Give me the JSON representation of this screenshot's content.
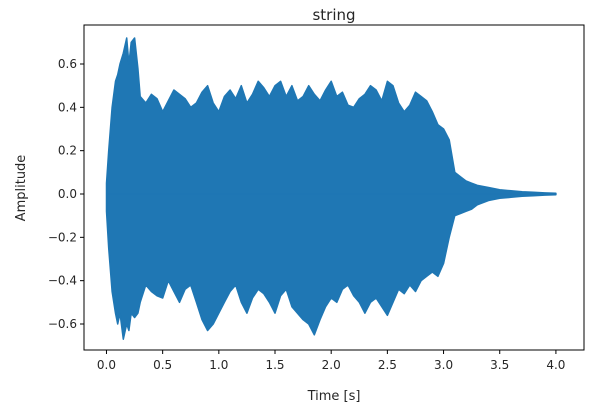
{
  "chart_data": {
    "type": "area",
    "title": "string",
    "xlabel": "Time [s]",
    "ylabel": "Amplitude",
    "xlim": [
      -0.2,
      4.25
    ],
    "ylim": [
      -0.72,
      0.78
    ],
    "xticks": [
      0.0,
      0.5,
      1.0,
      1.5,
      2.0,
      2.5,
      3.0,
      3.5,
      4.0
    ],
    "xtick_labels": [
      "0.0",
      "0.5",
      "1.0",
      "1.5",
      "2.0",
      "2.5",
      "3.0",
      "3.5",
      "4.0"
    ],
    "yticks": [
      -0.6,
      -0.4,
      -0.2,
      0.0,
      0.2,
      0.4,
      0.6
    ],
    "ytick_labels": [
      "−0.6",
      "−0.4",
      "−0.2",
      "0.0",
      "0.2",
      "0.4",
      "0.6"
    ],
    "grid": false,
    "legend": false,
    "color": "#1f77b4",
    "series": [
      {
        "x": [
          0.0,
          0.02,
          0.05,
          0.08,
          0.1,
          0.12,
          0.15,
          0.18,
          0.2,
          0.22,
          0.25,
          0.28,
          0.3,
          0.35,
          0.4,
          0.45,
          0.5,
          0.55,
          0.6,
          0.65,
          0.7,
          0.75,
          0.8,
          0.85,
          0.9,
          0.95,
          1.0,
          1.05,
          1.1,
          1.15,
          1.2,
          1.25,
          1.3,
          1.35,
          1.4,
          1.45,
          1.5,
          1.55,
          1.6,
          1.65,
          1.7,
          1.75,
          1.8,
          1.85,
          1.9,
          1.95,
          2.0,
          2.05,
          2.1,
          2.15,
          2.2,
          2.25,
          2.3,
          2.35,
          2.4,
          2.45,
          2.5,
          2.55,
          2.6,
          2.65,
          2.7,
          2.75,
          2.8,
          2.85,
          2.9,
          2.95,
          3.0,
          3.05,
          3.1,
          3.15,
          3.2,
          3.25,
          3.3,
          3.4,
          3.5,
          3.6,
          3.7,
          3.8,
          3.9,
          4.0
        ],
        "upper": [
          0.05,
          0.2,
          0.4,
          0.52,
          0.55,
          0.6,
          0.65,
          0.72,
          0.6,
          0.7,
          0.72,
          0.58,
          0.45,
          0.42,
          0.46,
          0.44,
          0.38,
          0.43,
          0.48,
          0.46,
          0.44,
          0.4,
          0.42,
          0.47,
          0.5,
          0.42,
          0.38,
          0.45,
          0.48,
          0.44,
          0.5,
          0.42,
          0.46,
          0.52,
          0.49,
          0.45,
          0.5,
          0.52,
          0.45,
          0.5,
          0.43,
          0.45,
          0.5,
          0.46,
          0.43,
          0.48,
          0.52,
          0.45,
          0.47,
          0.41,
          0.4,
          0.44,
          0.46,
          0.5,
          0.48,
          0.43,
          0.52,
          0.5,
          0.42,
          0.38,
          0.41,
          0.47,
          0.45,
          0.43,
          0.38,
          0.32,
          0.3,
          0.25,
          0.1,
          0.08,
          0.06,
          0.05,
          0.04,
          0.03,
          0.02,
          0.015,
          0.01,
          0.008,
          0.005,
          0.003
        ],
        "lower": [
          -0.08,
          -0.25,
          -0.45,
          -0.55,
          -0.6,
          -0.55,
          -0.67,
          -0.6,
          -0.63,
          -0.55,
          -0.57,
          -0.55,
          -0.5,
          -0.42,
          -0.45,
          -0.47,
          -0.48,
          -0.4,
          -0.45,
          -0.5,
          -0.44,
          -0.42,
          -0.5,
          -0.58,
          -0.63,
          -0.6,
          -0.55,
          -0.5,
          -0.45,
          -0.42,
          -0.5,
          -0.55,
          -0.48,
          -0.44,
          -0.46,
          -0.5,
          -0.55,
          -0.47,
          -0.44,
          -0.52,
          -0.55,
          -0.58,
          -0.6,
          -0.65,
          -0.58,
          -0.52,
          -0.48,
          -0.5,
          -0.44,
          -0.42,
          -0.47,
          -0.5,
          -0.55,
          -0.5,
          -0.48,
          -0.52,
          -0.56,
          -0.5,
          -0.44,
          -0.46,
          -0.42,
          -0.45,
          -0.4,
          -0.38,
          -0.36,
          -0.38,
          -0.32,
          -0.2,
          -0.1,
          -0.09,
          -0.08,
          -0.07,
          -0.05,
          -0.03,
          -0.02,
          -0.015,
          -0.01,
          -0.008,
          -0.005,
          -0.003
        ]
      }
    ]
  }
}
